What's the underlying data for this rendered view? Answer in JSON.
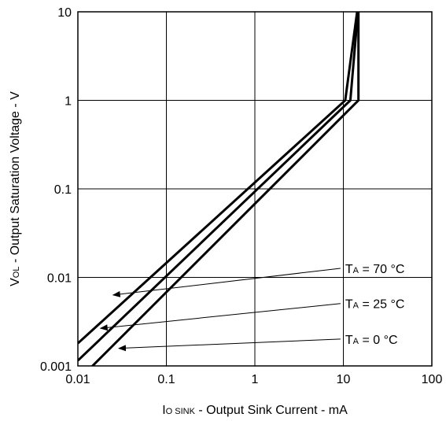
{
  "chart_data": {
    "type": "line",
    "x_scale": "log",
    "y_scale": "log",
    "xlim": [
      0.01,
      100
    ],
    "ylim": [
      0.001,
      10
    ],
    "x_ticks": [
      "0.01",
      "0.1",
      "1",
      "10",
      "100"
    ],
    "y_ticks": [
      "0.001",
      "0.01",
      "0.1",
      "1",
      "10"
    ],
    "grid": true,
    "xlabel": {
      "main": "I",
      "sub": "O SINK",
      "rest": " - Output Sink Current - mA"
    },
    "ylabel": {
      "main": "V",
      "sub": "OL",
      "rest": " - Output Saturation Voltage - V"
    },
    "series": [
      {
        "name": "TA = 70 °C",
        "label_main": "T",
        "label_sub": "A",
        "label_rest": " = 70 °C",
        "arrow_at": [
          0.025,
          0.00632
        ],
        "label_at": [
          10.5,
          0.0112
        ],
        "points": [
          [
            0.01,
            0.0018
          ],
          [
            10.5,
            1.0
          ],
          [
            14.3,
            10.0
          ]
        ]
      },
      {
        "name": "TA = 25 °C",
        "label_main": "T",
        "label_sub": "A",
        "label_rest": " = 25 °C",
        "arrow_at": [
          0.018,
          0.00266
        ],
        "label_at": [
          10.5,
          0.00448
        ],
        "points": [
          [
            0.01,
            0.00115
          ],
          [
            12.0,
            1.0
          ],
          [
            14.6,
            10.0
          ]
        ]
      },
      {
        "name": "TA = 0 °C",
        "label_main": "T",
        "label_sub": "A",
        "label_rest": " = 0 °C",
        "arrow_at": [
          0.029,
          0.00158
        ],
        "label_at": [
          10.5,
          0.00178
        ],
        "points": [
          [
            0.012,
            0.00082
          ],
          [
            14.8,
            1.0
          ],
          [
            14.8,
            10.0
          ]
        ]
      }
    ]
  }
}
